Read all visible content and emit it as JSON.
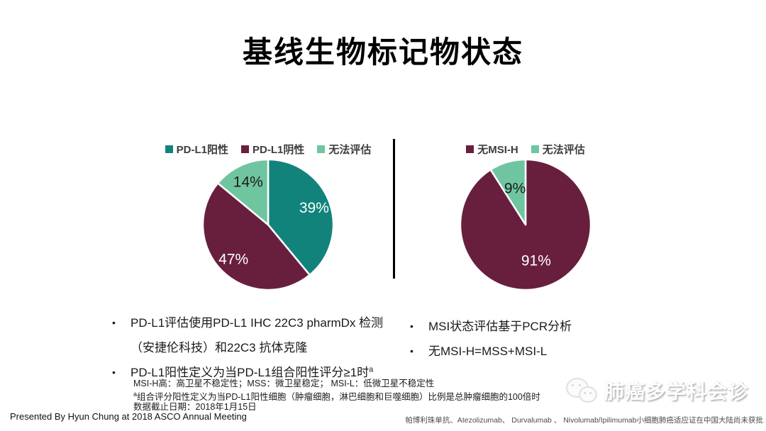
{
  "slide": {
    "title": "基线生物标记物状态",
    "footer_left": "Presented By Hyun Chung at 2018 ASCO  Annual Meeting",
    "footer_right": "帕博利珠单抗、Atezolizumab、 Durvalumab 、 Nivolumab/Ipilimumab小细胞肺癌适应证在中国大陆尚未获批",
    "watermark_text": "肺癌多学科会诊"
  },
  "colors": {
    "teal": "#12837B",
    "maroon": "#681F3E",
    "mint": "#6FC5A0",
    "divider": "#000000"
  },
  "chart_data": [
    {
      "type": "pie",
      "name": "PD-L1 status",
      "legend_position": "top",
      "direction": "clockwise",
      "start_angle_deg": 0,
      "unit": "%",
      "slices": [
        {
          "label": "PD-L1阳性",
          "value": 39,
          "data_label": "39%",
          "color": "#12837B",
          "label_radius": 0.75
        },
        {
          "label": "PD-L1阴性",
          "value": 47,
          "data_label": "47%",
          "color": "#681F3E",
          "label_radius": 0.75
        },
        {
          "label": "无法评估",
          "value": 14,
          "data_label": "14%",
          "color": "#6FC5A0",
          "label_radius": 0.72
        }
      ]
    },
    {
      "type": "pie",
      "name": "MSI status",
      "legend_position": "top",
      "direction": "clockwise",
      "start_angle_deg": 0,
      "unit": "%",
      "slices": [
        {
          "label": "无MSI-H",
          "value": 91,
          "data_label": "91%",
          "color": "#681F3E",
          "label_radius": 0.58
        },
        {
          "label": "无法评估",
          "value": 9,
          "data_label": "9%",
          "color": "#6FC5A0",
          "label_radius": 0.58
        }
      ]
    }
  ],
  "left_panel": {
    "bullets": [
      "PD-L1评估使用PD-L1 IHC 22C3 pharmDx 检测（安捷伦科技）和22C3 抗体克隆",
      "PD-L1阳性定义为当PD-L1组合阳性评分≥1时"
    ],
    "bullet2_sup": "a"
  },
  "right_panel": {
    "bullets": [
      "MSI状态评估基于PCR分析",
      "无MSI-H=MSS+MSI-L"
    ]
  },
  "footnotes": {
    "line1": "MSI-H高：高卫星不稳定性；MSS：微卫星稳定；  MSI-L：低微卫星不稳定性",
    "line2_sup": "a",
    "line2": "组合评分阳性定义为当PD-L1阳性细胞（肿瘤细胞，淋巴细胞和巨噬细胞）比例是总肿瘤细胞的100倍时",
    "line3": "数据截止日期：2018年1月15日"
  }
}
